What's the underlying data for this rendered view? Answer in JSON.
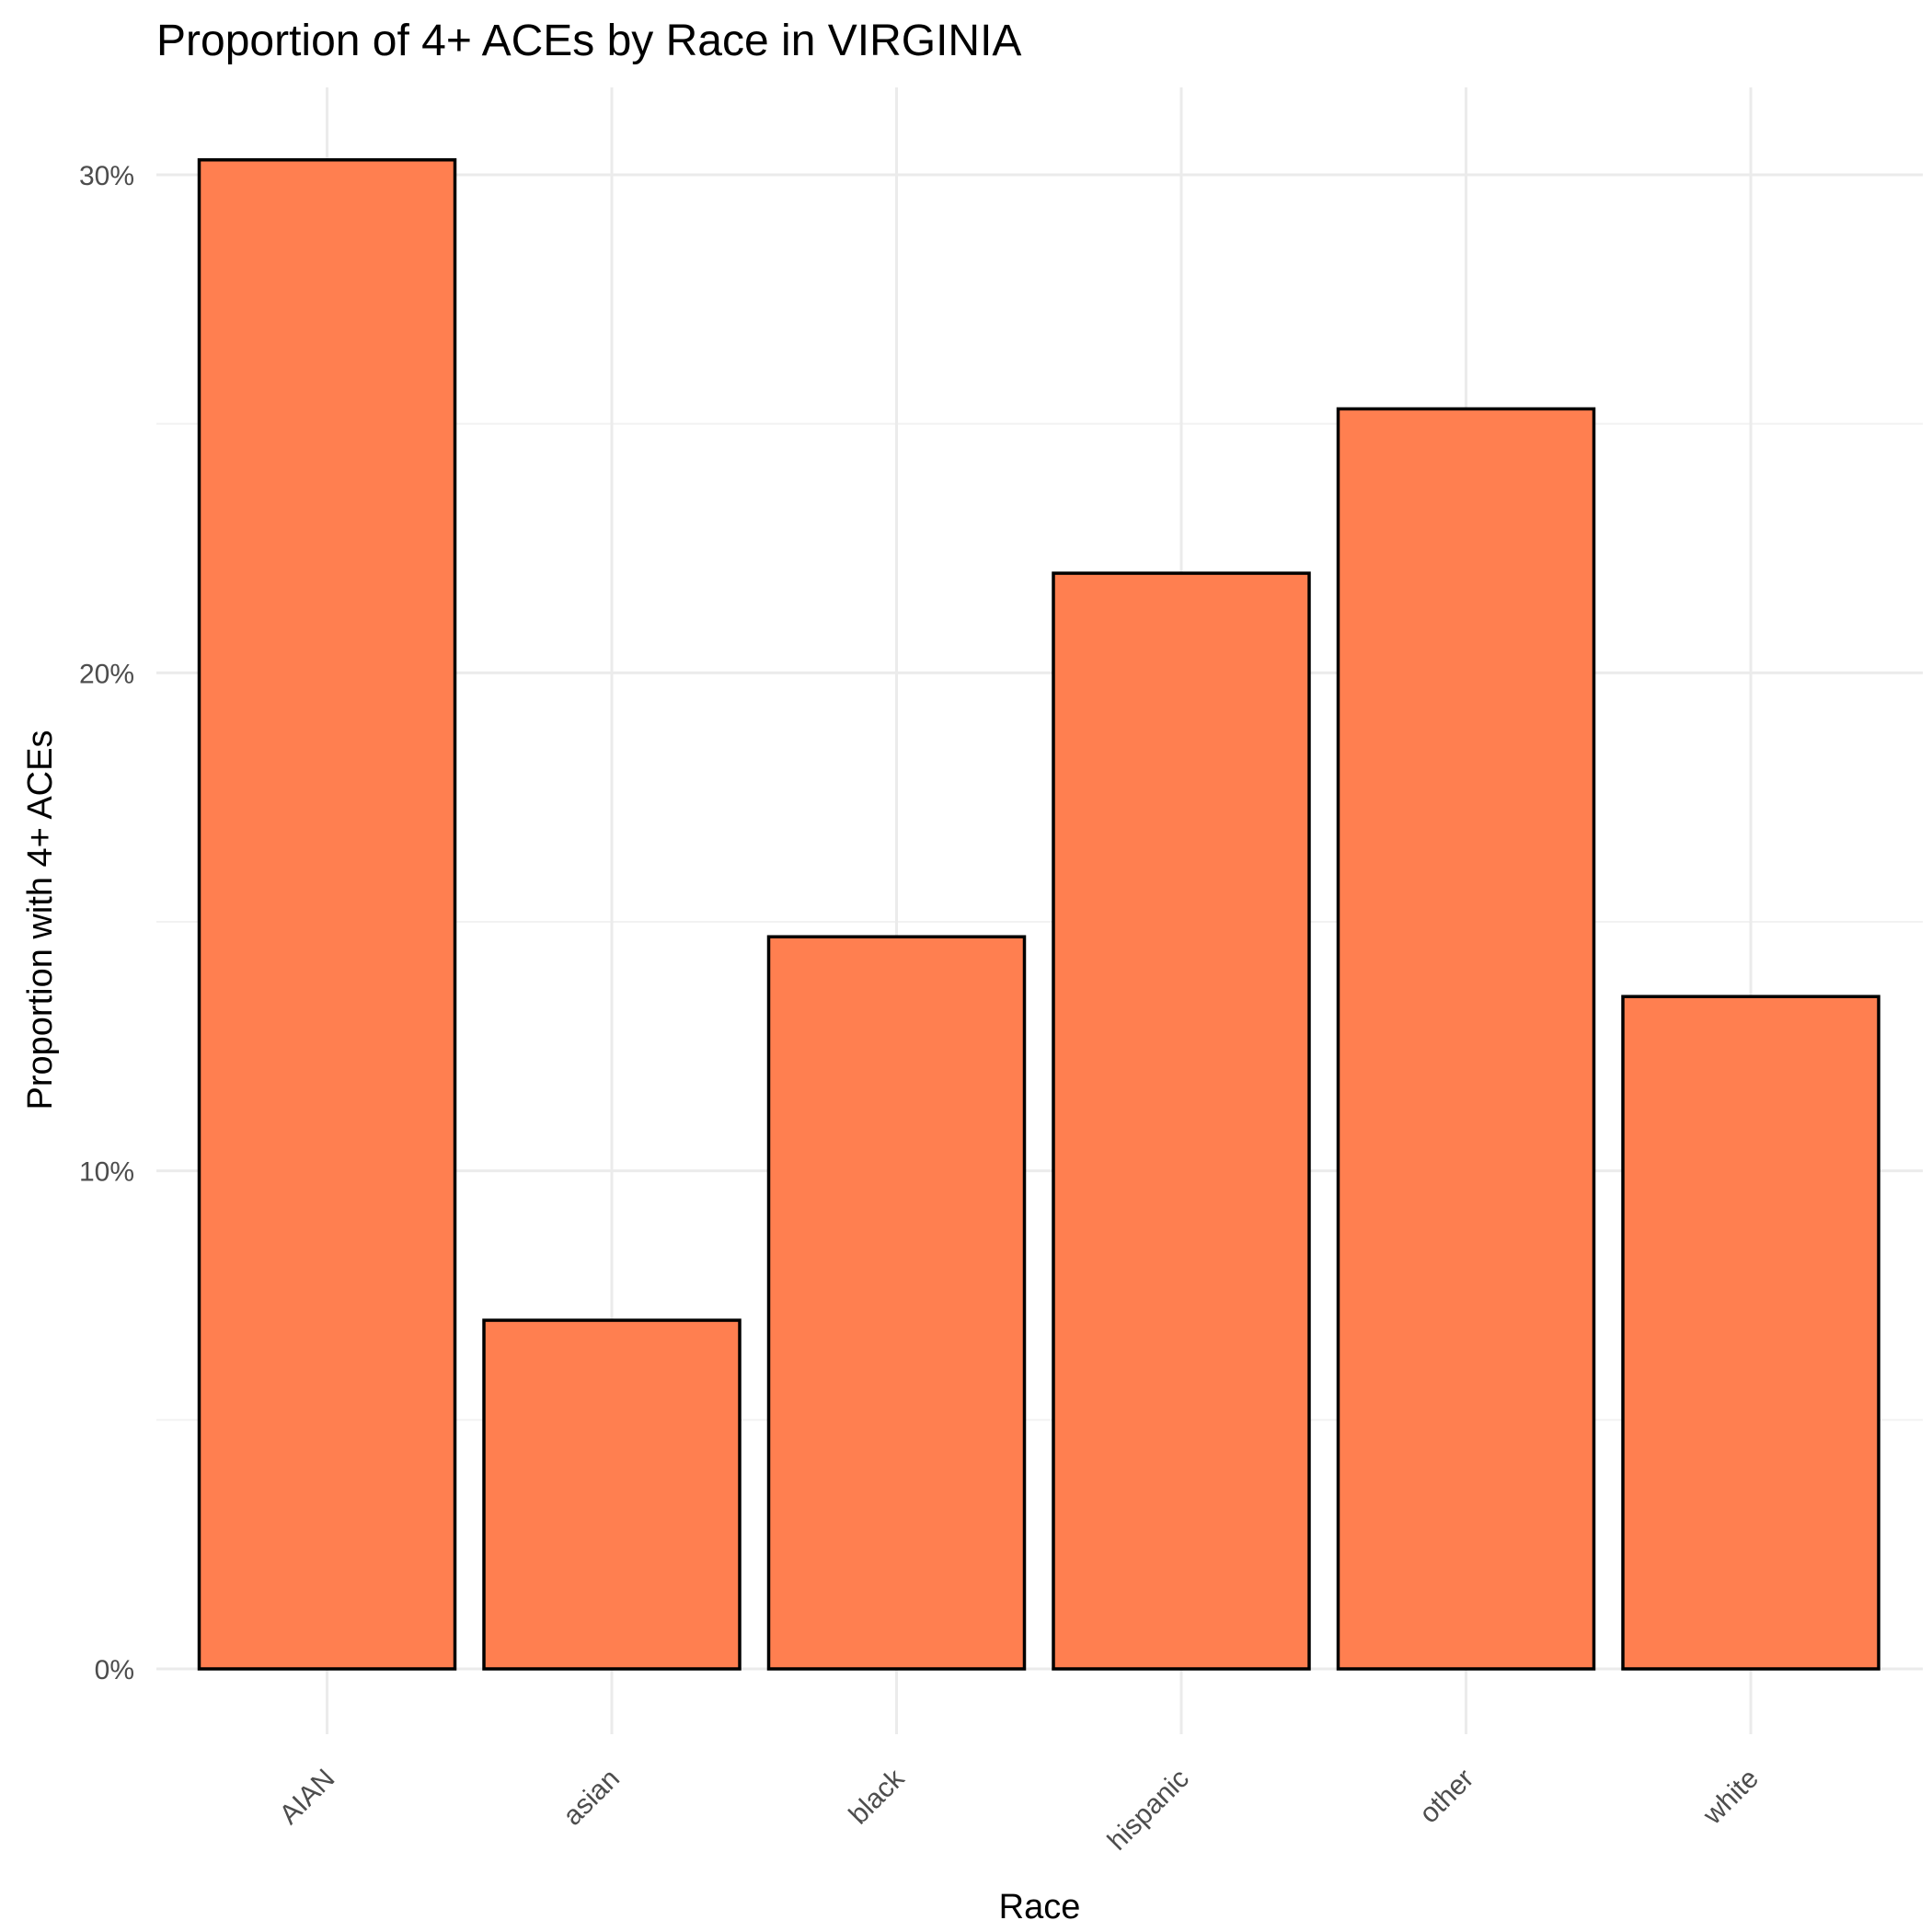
{
  "chart_data": {
    "type": "bar",
    "title": "Proportion of 4+ ACEs by Race in VIRGINIA",
    "xlabel": "Race",
    "ylabel": "Proportion with 4+ ACEs",
    "categories": [
      "AIAN",
      "asian",
      "black",
      "hispanic",
      "other",
      "white"
    ],
    "values": [
      0.303,
      0.07,
      0.147,
      0.22,
      0.253,
      0.135
    ],
    "ylim": [
      0,
      0.3
    ],
    "yticks": [
      0,
      0.1,
      0.2,
      0.3
    ],
    "ytick_labels": [
      "0%",
      "10%",
      "20%",
      "30%"
    ],
    "bar_color": "#FF7F50",
    "bar_outline_color": "#000000",
    "grid": true,
    "legend": "none"
  }
}
